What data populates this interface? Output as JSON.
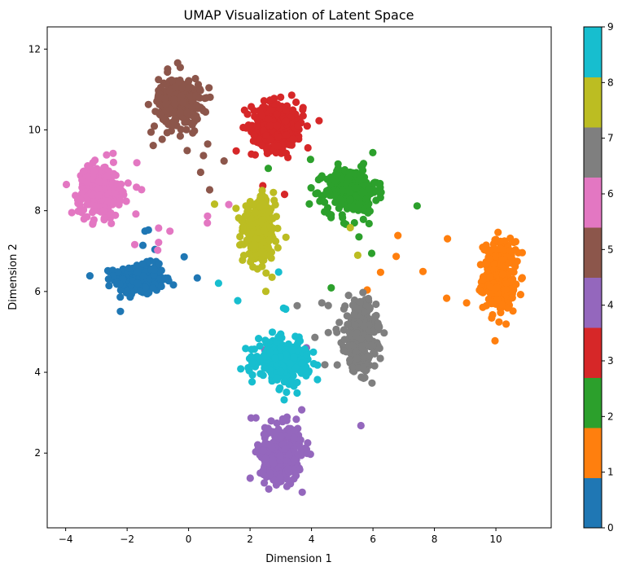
{
  "chart_data": {
    "type": "scatter",
    "title": "UMAP Visualization of Latent Space",
    "xlabel": "Dimension 1",
    "ylabel": "Dimension 2",
    "xlim": [
      -4.6,
      11.8
    ],
    "ylim": [
      0.15,
      12.55
    ],
    "xticks": [
      -4,
      -2,
      0,
      2,
      4,
      6,
      8,
      10
    ],
    "yticks": [
      2,
      4,
      6,
      8,
      10,
      12
    ],
    "grid": false,
    "legend": "none (colorbar on right)",
    "colorbar": {
      "ticks": [
        0,
        1,
        2,
        3,
        4,
        5,
        6,
        7,
        8,
        9
      ],
      "range": [
        0,
        9
      ]
    },
    "series": [
      {
        "label": 0,
        "color": "#1f77b4",
        "center": [
          -1.6,
          6.3
        ],
        "spread": [
          0.95,
          0.45
        ]
      },
      {
        "label": 1,
        "color": "#ff7f0e",
        "center": [
          10.1,
          6.4
        ],
        "spread": [
          0.6,
          1.0
        ]
      },
      {
        "label": 2,
        "color": "#2ca02c",
        "center": [
          5.3,
          8.5
        ],
        "spread": [
          1.0,
          0.65
        ]
      },
      {
        "label": 3,
        "color": "#d62728",
        "center": [
          2.9,
          10.1
        ],
        "spread": [
          1.0,
          0.7
        ]
      },
      {
        "label": 4,
        "color": "#9467bd",
        "center": [
          3.0,
          2.0
        ],
        "spread": [
          0.8,
          0.8
        ]
      },
      {
        "label": 5,
        "color": "#8c564b",
        "center": [
          -0.3,
          10.7
        ],
        "spread": [
          0.8,
          0.7
        ]
      },
      {
        "label": 6,
        "color": "#e377c2",
        "center": [
          -2.9,
          8.5
        ],
        "spread": [
          0.8,
          0.75
        ]
      },
      {
        "label": 7,
        "color": "#7f7f7f",
        "center": [
          5.6,
          4.9
        ],
        "spread": [
          0.6,
          1.0
        ]
      },
      {
        "label": 8,
        "color": "#bcbd22",
        "center": [
          2.3,
          7.5
        ],
        "spread": [
          0.6,
          0.8
        ]
      },
      {
        "label": 9,
        "color": "#17becf",
        "center": [
          3.1,
          4.3
        ],
        "spread": [
          1.0,
          0.55
        ]
      }
    ]
  }
}
